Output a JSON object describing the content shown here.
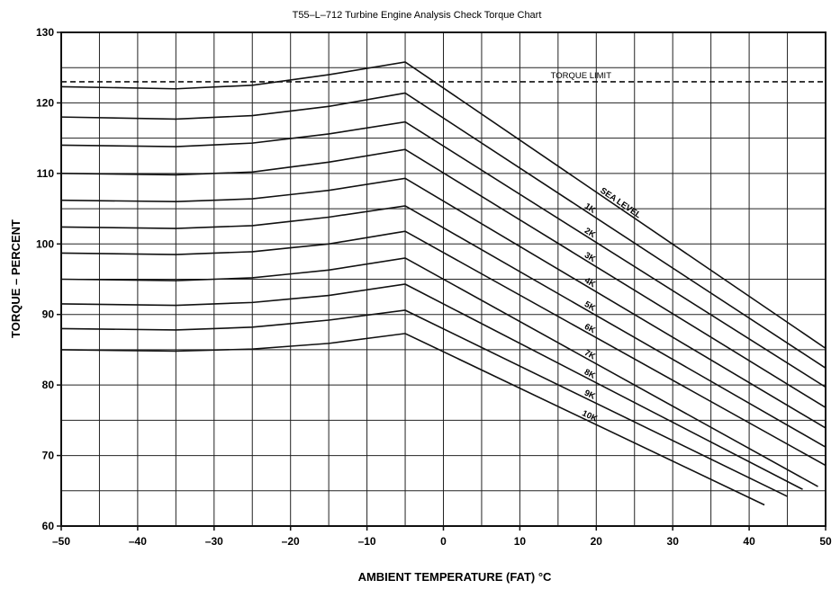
{
  "chart_data": {
    "type": "line",
    "title": "T55–L–712 Turbine Engine Analysis Check Torque Chart",
    "xlabel": "AMBIENT TEMPERATURE (FAT) °C",
    "ylabel": "TORQUE – PERCENT",
    "xlim": [
      -50,
      50
    ],
    "ylim": [
      60,
      130
    ],
    "xticks": [
      -50,
      -40,
      -30,
      -20,
      -10,
      0,
      10,
      20,
      30,
      40,
      50
    ],
    "yticks": [
      60,
      70,
      80,
      90,
      100,
      110,
      120,
      130
    ],
    "xtick_labels": [
      "–50",
      "–40",
      "–30",
      "–20",
      "–10",
      "0",
      "10",
      "20",
      "30",
      "40",
      "50"
    ],
    "ytick_labels": [
      "60",
      "70",
      "80",
      "90",
      "100",
      "110",
      "120",
      "130"
    ],
    "grid": true,
    "torque_limit": {
      "label": "TORQUE   LIMIT",
      "value": 123,
      "style": "dashed"
    },
    "series": [
      {
        "name": "SEA LEVEL",
        "x": [
          -50,
          -35,
          -25,
          -15,
          -5,
          50
        ],
        "y": [
          122.3,
          122.0,
          122.5,
          124.0,
          125.8,
          85.2
        ]
      },
      {
        "name": "1K",
        "x": [
          -50,
          -35,
          -25,
          -15,
          -5,
          50
        ],
        "y": [
          118.0,
          117.7,
          118.2,
          119.5,
          121.4,
          82.4
        ]
      },
      {
        "name": "2K",
        "x": [
          -50,
          -35,
          -25,
          -15,
          -5,
          50
        ],
        "y": [
          114.0,
          113.8,
          114.3,
          115.6,
          117.3,
          79.7
        ]
      },
      {
        "name": "3K",
        "x": [
          -50,
          -35,
          -25,
          -15,
          -5,
          50
        ],
        "y": [
          110.0,
          109.8,
          110.2,
          111.6,
          113.4,
          76.8
        ]
      },
      {
        "name": "4K",
        "x": [
          -50,
          -35,
          -25,
          -15,
          -5,
          50
        ],
        "y": [
          106.2,
          106.0,
          106.4,
          107.6,
          109.3,
          73.9
        ]
      },
      {
        "name": "5K",
        "x": [
          -50,
          -35,
          -25,
          -15,
          -5,
          50
        ],
        "y": [
          102.4,
          102.2,
          102.6,
          103.8,
          105.4,
          71.2
        ]
      },
      {
        "name": "6K",
        "x": [
          -50,
          -35,
          -25,
          -15,
          -5,
          50
        ],
        "y": [
          98.7,
          98.5,
          98.9,
          100.0,
          101.8,
          68.6
        ]
      },
      {
        "name": "7K",
        "x": [
          -50,
          -35,
          -25,
          -15,
          -5,
          49
        ],
        "y": [
          95.0,
          94.8,
          95.2,
          96.3,
          98.0,
          65.6
        ]
      },
      {
        "name": "8K",
        "x": [
          -50,
          -35,
          -25,
          -15,
          -5,
          47
        ],
        "y": [
          91.5,
          91.3,
          91.7,
          92.7,
          94.3,
          65.2
        ]
      },
      {
        "name": "9K",
        "x": [
          -50,
          -35,
          -25,
          -15,
          -5,
          45
        ],
        "y": [
          88.0,
          87.8,
          88.2,
          89.2,
          90.6,
          64.2
        ]
      },
      {
        "name": "10K",
        "x": [
          -50,
          -35,
          -25,
          -15,
          -5,
          42
        ],
        "y": [
          85.0,
          84.8,
          85.1,
          85.9,
          87.3,
          63.0
        ]
      }
    ]
  }
}
